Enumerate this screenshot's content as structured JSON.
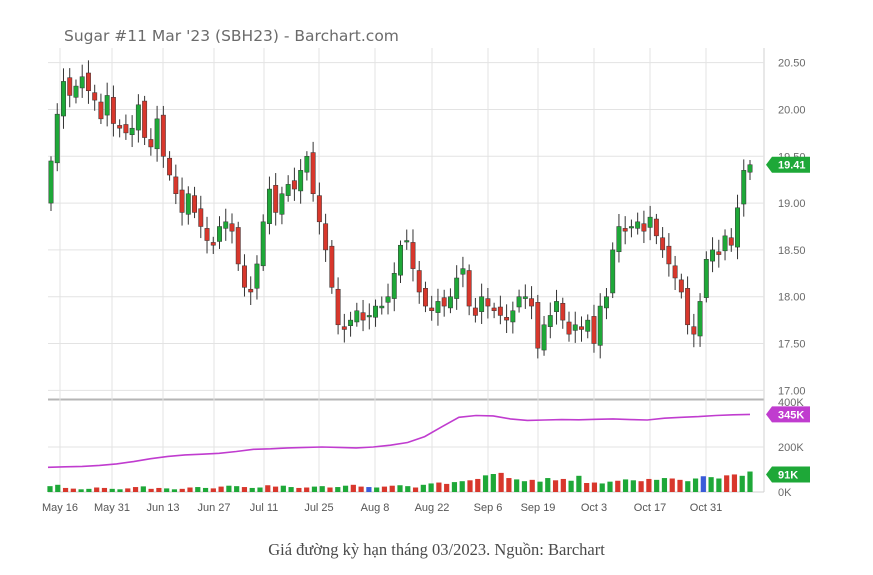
{
  "title": "Sugar #11 Mar '23 (SBH23) - Barchart.com",
  "caption": "Giá đường kỳ hạn tháng 03/2023. Nguồn: Barchart",
  "colors": {
    "up": "#1ea838",
    "down": "#d8372c",
    "volume_blue": "#3a5bd9",
    "open_interest": "#c03ccf",
    "grid": "#e3e3e3"
  },
  "chart_data": [
    {
      "type": "candlestick",
      "title": "Sugar #11 Mar '23 (SBH23) - Barchart.com",
      "ylim": [
        16.95,
        20.55
      ],
      "yticks": [
        "20.50",
        "20.00",
        "19.50",
        "19.00",
        "18.50",
        "18.00",
        "17.50",
        "17.00"
      ],
      "xticks": [
        "May 16",
        "May 31",
        "Jun 13",
        "Jun 27",
        "Jul 11",
        "Jul 25",
        "Aug 8",
        "Aug 22",
        "Sep 6",
        "Sep 19",
        "Oct 3",
        "Oct 17",
        "Oct 31"
      ],
      "last_price": "19.41",
      "closes": [
        19.45,
        19.95,
        20.3,
        20.15,
        20.25,
        20.35,
        20.2,
        20.1,
        19.9,
        20.15,
        19.85,
        19.8,
        19.75,
        19.8,
        20.05,
        19.7,
        19.6,
        19.9,
        19.5,
        19.3,
        19.1,
        18.9,
        19.1,
        18.9,
        18.75,
        18.6,
        18.55,
        18.75,
        18.8,
        18.7,
        18.35,
        18.1,
        18.05,
        18.35,
        18.8,
        19.15,
        18.9,
        19.1,
        19.2,
        19.15,
        19.35,
        19.5,
        19.1,
        18.8,
        18.5,
        18.1,
        17.7,
        17.65,
        17.75,
        17.85,
        17.75,
        17.8,
        17.9,
        17.9,
        18.0,
        18.25,
        18.55,
        18.6,
        18.3,
        18.05,
        17.9,
        17.85,
        17.95,
        17.9,
        18.0,
        18.2,
        18.3,
        17.9,
        17.8,
        18.0,
        17.9,
        17.85,
        17.8,
        17.75,
        17.85,
        18.0,
        18.0,
        17.9,
        17.45,
        17.7,
        17.8,
        17.95,
        17.75,
        17.6,
        17.7,
        17.65,
        17.75,
        17.5,
        17.9,
        18.0,
        18.5,
        18.75,
        18.7,
        18.75,
        18.8,
        18.7,
        18.85,
        18.65,
        18.5,
        18.35,
        18.2,
        18.05,
        17.7,
        17.6,
        17.95,
        18.4,
        18.5,
        18.45,
        18.65,
        18.55,
        18.95,
        19.35,
        19.41
      ]
    },
    {
      "type": "bar+line",
      "series": [
        "volume",
        "open interest"
      ],
      "ylim": [
        0,
        400000
      ],
      "yticks": [
        "400K",
        "200K",
        "0K"
      ],
      "last_open_interest": "345K",
      "last_volume": "91K",
      "open_interest": [
        110000,
        112000,
        114000,
        118000,
        125000,
        135000,
        148000,
        158000,
        165000,
        168000,
        172000,
        180000,
        190000,
        192000,
        196000,
        198000,
        200000,
        198000,
        196000,
        200000,
        208000,
        220000,
        246000,
        290000,
        332000,
        340000,
        338000,
        325000,
        318000,
        320000,
        322000,
        321000,
        323000,
        325000,
        322000,
        320000,
        328000,
        332000,
        335000,
        340000,
        343000,
        345000
      ],
      "volume": [
        26000,
        32000,
        18000,
        15000,
        12000,
        14000,
        20000,
        18000,
        14000,
        12000,
        16000,
        22000,
        25000,
        14000,
        18000,
        16000,
        12000,
        14000,
        20000,
        22000,
        18000,
        16000,
        24000,
        28000,
        26000,
        22000,
        18000,
        20000,
        30000,
        24000,
        28000,
        22000,
        18000,
        20000,
        24000,
        26000,
        20000,
        22000,
        28000,
        32000,
        24000,
        22000,
        20000,
        24000,
        28000,
        30000,
        26000,
        20000,
        32000,
        38000,
        42000,
        36000,
        44000,
        48000,
        52000,
        58000,
        74000,
        80000,
        85000,
        62000,
        56000,
        48000,
        54000,
        46000,
        62000,
        52000,
        58000,
        50000,
        72000,
        40000,
        42000,
        38000,
        46000,
        50000,
        56000,
        52000,
        48000,
        58000,
        54000,
        62000,
        60000,
        54000,
        48000,
        60000,
        70000,
        66000,
        60000,
        74000,
        78000,
        72000,
        91000
      ]
    }
  ]
}
